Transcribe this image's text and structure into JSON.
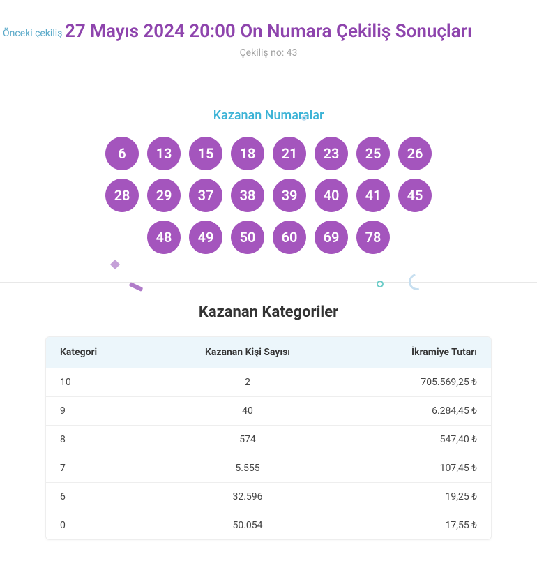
{
  "header": {
    "prev_link": "Önceki çekiliş",
    "title": "27 Mayıs 2024 20:00 On Numara Çekiliş Sonuçları",
    "draw_no_label": "Çekiliş no: 43"
  },
  "colors": {
    "title": "#8e44ad",
    "subtitle": "#a0a0a0",
    "link": "#5aa9c9",
    "numbers_title": "#3bb3d6",
    "ball_bg": "#a455bd",
    "ball_text": "#ffffff",
    "table_header_bg": "#ecf6fb",
    "border": "#eeeeee",
    "background": "#ffffff"
  },
  "numbers": {
    "title": "Kazanan Numaralar",
    "balls": [
      6,
      13,
      15,
      18,
      21,
      23,
      25,
      26,
      28,
      29,
      37,
      38,
      39,
      40,
      41,
      45,
      48,
      49,
      50,
      60,
      69,
      78
    ]
  },
  "categories": {
    "title": "Kazanan Kategoriler",
    "columns": [
      "Kategori",
      "Kazanan Kişi Sayısı",
      "İkramiye Tutarı"
    ],
    "rows": [
      {
        "category": "10",
        "winners": "2",
        "prize": "705.569,25 ₺"
      },
      {
        "category": "9",
        "winners": "40",
        "prize": "6.284,45 ₺"
      },
      {
        "category": "8",
        "winners": "574",
        "prize": "547,40 ₺"
      },
      {
        "category": "7",
        "winners": "5.555",
        "prize": "107,45 ₺"
      },
      {
        "category": "6",
        "winners": "32.596",
        "prize": "19,25 ₺"
      },
      {
        "category": "0",
        "winners": "50.054",
        "prize": "17,55 ₺"
      }
    ]
  }
}
